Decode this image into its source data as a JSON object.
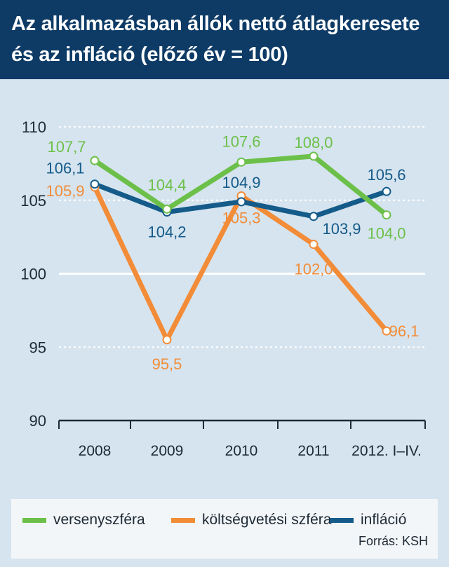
{
  "header": {
    "title_line1": "Az alkalmazásban állók nettó átlagkeresete",
    "title_line2": "és az infláció (előző év = 100)"
  },
  "chart_data": {
    "type": "line",
    "title": "Az alkalmazásban állók nettó átlagkeresete és az infláció (előző év = 100)",
    "categories": [
      "2008",
      "2009",
      "2010",
      "2011",
      "2012. I–IV."
    ],
    "ylim": [
      90,
      110
    ],
    "yticks": [
      90,
      95,
      100,
      105,
      110
    ],
    "grid": true,
    "legend_position": "bottom",
    "series": [
      {
        "name": "versenyszféra",
        "color": "#6cc04a",
        "values": [
          107.7,
          104.4,
          107.6,
          108.0,
          104.0
        ],
        "labels": [
          "107,7",
          "104,4",
          "107,6",
          "108,0",
          "104,0"
        ]
      },
      {
        "name": "költségvetési szféra",
        "color": "#f28c38",
        "values": [
          105.9,
          95.5,
          105.3,
          102.0,
          96.1
        ],
        "labels": [
          "105,9",
          "95,5",
          "105,3",
          "102,0",
          "96,1"
        ]
      },
      {
        "name": "infláció",
        "color": "#145b8a",
        "values": [
          106.1,
          104.2,
          104.9,
          103.9,
          105.6
        ],
        "labels": [
          "106,1",
          "104,2",
          "104,9",
          "103,9",
          "105,6"
        ]
      }
    ]
  },
  "legend": {
    "items": [
      {
        "label": "versenyszféra",
        "color": "#6cc04a"
      },
      {
        "label": "költségvetési szféra",
        "color": "#f28c38"
      },
      {
        "label": "infláció",
        "color": "#145b8a"
      }
    ],
    "source": "Forrás: KSH"
  }
}
